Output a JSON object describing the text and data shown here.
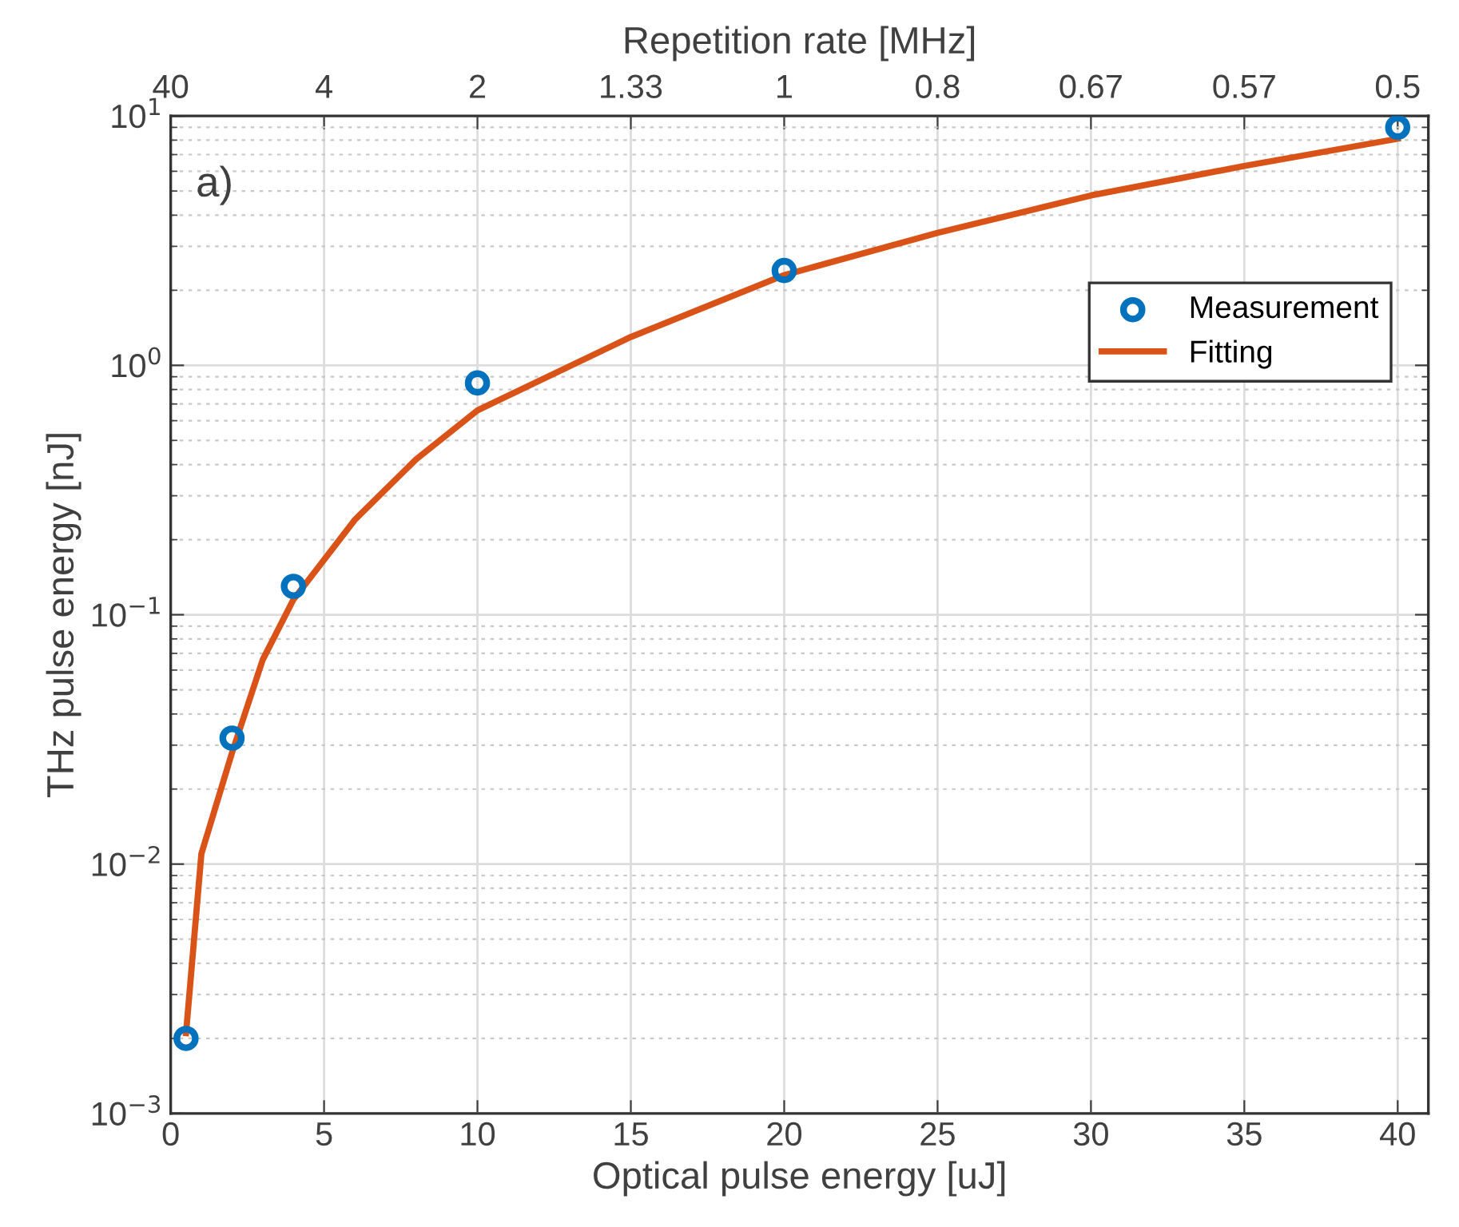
{
  "chart_data": {
    "type": "scatter",
    "xlabel": "Optical pulse energy [uJ]",
    "ylabel": "THz pulse energy [nJ]",
    "x2label": "Repetition rate [MHz]",
    "annotations": [
      "a)",
      "40",
      "4",
      "2",
      "1.33",
      "1",
      "0.8",
      "0.67",
      "0.57",
      "0.5"
    ],
    "series": [
      {
        "name": "Measurement",
        "color": "#0072bd",
        "marker": "circle",
        "x": [
          0.5,
          2,
          4,
          10,
          20,
          40
        ],
        "values": [
          0.002,
          0.032,
          0.13,
          0.85,
          2.4,
          9.0
        ]
      },
      {
        "name": "Fitting",
        "type": "line",
        "color": "#d95319",
        "marker": "none",
        "line_style": "solid",
        "x": [
          0.5,
          1,
          2,
          3,
          4,
          6,
          8,
          10,
          15,
          20,
          25,
          30,
          35,
          40
        ],
        "values": [
          0.0021,
          0.011,
          0.028,
          0.066,
          0.115,
          0.24,
          0.42,
          0.66,
          1.3,
          2.3,
          3.4,
          4.8,
          6.3,
          8.1
        ]
      }
    ],
    "log": "y",
    "grid": true,
    "legend": "top right",
    "xlim": [
      0,
      41
    ],
    "xticks": [
      0,
      5,
      10,
      15,
      20,
      25,
      30,
      35,
      40
    ],
    "ylim": [
      0.001,
      10
    ],
    "yticks": [
      {
        "value": 0.001,
        "label": "10$^{−3}$"
      },
      {
        "value": 0.01,
        "label": "10$^{−2}$"
      },
      {
        "value": 0.1,
        "label": "10$^{−1}$"
      },
      {
        "value": 1,
        "label": "10$^{0}$"
      },
      {
        "value": 10,
        "label": "10$^{1}$"
      }
    ]
  }
}
